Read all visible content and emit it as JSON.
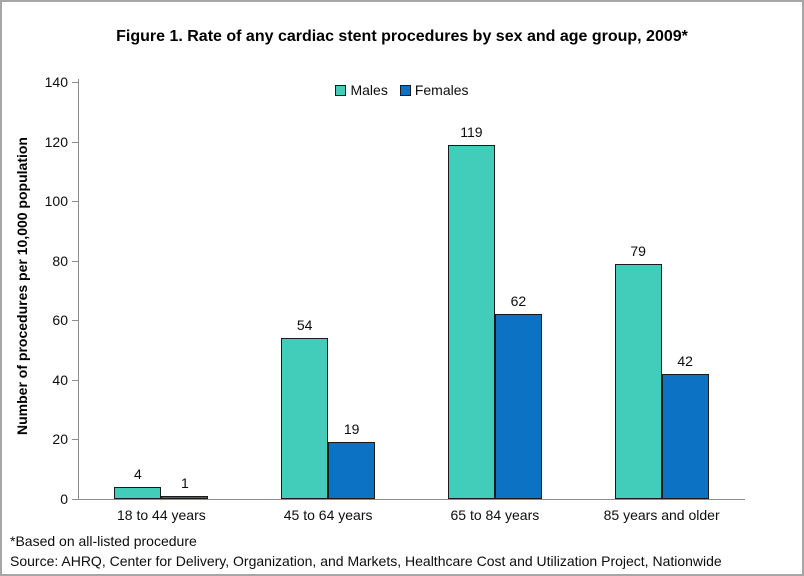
{
  "chart_data": {
    "type": "bar",
    "title": "Figure 1. Rate of any cardiac stent procedures by sex and age group, 2009*",
    "categories": [
      "18 to 44 years",
      "45 to 64 years",
      "65 to 84 years",
      "85 years and older"
    ],
    "series": [
      {
        "name": "Males",
        "color": "#41cdb9",
        "values": [
          4,
          54,
          119,
          79
        ]
      },
      {
        "name": "Females",
        "color": "#0b72c4",
        "values": [
          1,
          19,
          62,
          42
        ]
      }
    ],
    "xlabel": "",
    "ylabel": "Number of procedures per 10,000 population",
    "ylim": [
      0,
      140
    ],
    "yticks": [
      0,
      20,
      40,
      60,
      80,
      100,
      120,
      140
    ],
    "grid": false,
    "data_labels": true,
    "legend_position": "top-center"
  },
  "colors": {
    "males": "#41cdb9",
    "females": "#0b72c4",
    "axis": "#8c8c8c",
    "frame_border": "#a6a6a6",
    "text": "#0d0d0d"
  },
  "footnotes": [
    "*Based on all-listed procedure",
    "Source: AHRQ, Center for Delivery, Organization, and Markets, Healthcare Cost and Utilization Project, Nationwide"
  ]
}
